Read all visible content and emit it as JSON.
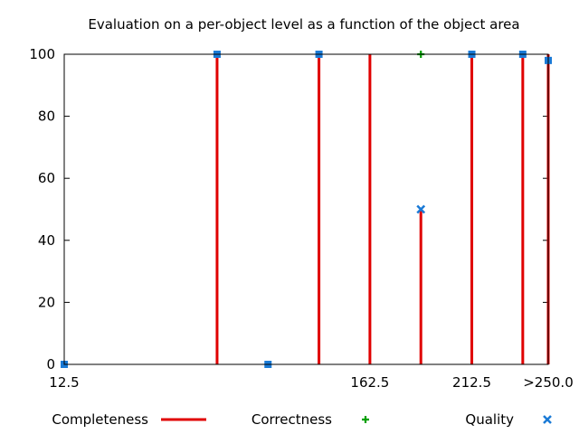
{
  "chart_data": {
    "type": "line",
    "title": "Evaluation on a per-object level as a function of the object area",
    "xlabel": "",
    "ylabel": "",
    "xlim": [
      12.5,
      250.0
    ],
    "ylim": [
      0,
      100
    ],
    "xticks": [
      {
        "value": 12.5,
        "label": "12.5"
      },
      {
        "value": 162.5,
        "label": "162.5"
      },
      {
        "value": 212.5,
        "label": "212.5"
      },
      {
        "value": 250.0,
        "label": ">250.0"
      }
    ],
    "yticks": [
      0,
      20,
      40,
      60,
      80,
      100
    ],
    "legend_position": "bottom",
    "series": [
      {
        "name": "Completeness",
        "style": "impulses",
        "color": "#e00000",
        "points": [
          [
            12.5,
            0
          ],
          [
            87.5,
            100
          ],
          [
            112.5,
            0
          ],
          [
            137.5,
            100
          ],
          [
            162.5,
            100
          ],
          [
            187.5,
            50
          ],
          [
            212.5,
            100
          ],
          [
            237.5,
            100
          ],
          [
            250.0,
            100
          ]
        ]
      },
      {
        "name": "Correctness",
        "style": "plus-marker",
        "color": "#00a000",
        "points": [
          [
            187.5,
            100
          ]
        ]
      },
      {
        "name": "Quality",
        "style": "x-marker",
        "color": "#1a7ad6",
        "points": [
          [
            12.5,
            0
          ],
          [
            87.5,
            100
          ],
          [
            112.5,
            0
          ],
          [
            137.5,
            100
          ],
          [
            187.5,
            50
          ],
          [
            212.5,
            100
          ],
          [
            237.5,
            100
          ],
          [
            250.0,
            98
          ]
        ]
      }
    ]
  }
}
